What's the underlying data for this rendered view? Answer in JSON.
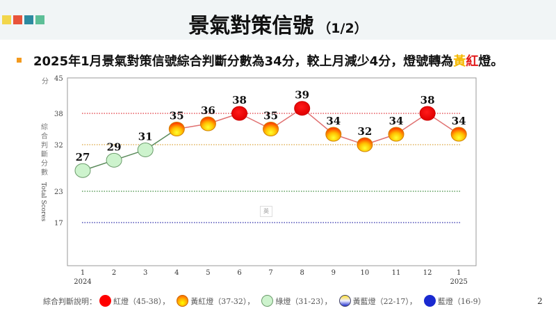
{
  "header": {
    "title": "景氣對策信號",
    "title_suffix": "（1/2）",
    "brand_colors": [
      "#f2d64b",
      "#e8533a",
      "#2d8aa0",
      "#5dbf97"
    ]
  },
  "subtitle": {
    "pre": "2025年1月景氣對策信號綜合判斷分數為34分，較上月減少4分，燈號轉為",
    "yellow": "黃",
    "red": "紅",
    "post": "燈。"
  },
  "chart_data": {
    "type": "line",
    "ylabel_unit": "分",
    "ylabel_zh": [
      "綜",
      "合",
      "判",
      "斷",
      "分",
      "數"
    ],
    "ylabel_en": "Total Scores",
    "y_ticks": [
      45,
      38,
      32,
      23,
      17
    ],
    "ylim": [
      9,
      45
    ],
    "x": [
      "1",
      "2",
      "3",
      "4",
      "5",
      "6",
      "7",
      "8",
      "9",
      "10",
      "11",
      "12",
      "1"
    ],
    "x_years": {
      "first": "2024",
      "last": "2025"
    },
    "values": [
      27,
      29,
      31,
      35,
      36,
      38,
      35,
      39,
      34,
      32,
      34,
      38,
      34
    ],
    "thresholds": [
      {
        "value": 38,
        "color": "#e0333a"
      },
      {
        "value": 32,
        "color": "#d9a33a"
      },
      {
        "value": 23,
        "color": "#3a8a3a"
      },
      {
        "value": 17,
        "color": "#2a2aa8"
      }
    ],
    "ime_label": "英"
  },
  "legend": {
    "label": "綜合判斷說明：",
    "items": [
      {
        "text": "紅燈（45-38）",
        "type": "red",
        "sep": "，"
      },
      {
        "text": "黃紅燈（37-32）",
        "type": "yellowred",
        "sep": "，"
      },
      {
        "text": "綠燈（31-23）",
        "type": "green",
        "sep": "，"
      },
      {
        "text": "黃藍燈（22-17）",
        "type": "yellowblue",
        "sep": "，"
      },
      {
        "text": "藍燈（16-9）",
        "type": "blue",
        "sep": ""
      }
    ]
  },
  "page_number": "2"
}
